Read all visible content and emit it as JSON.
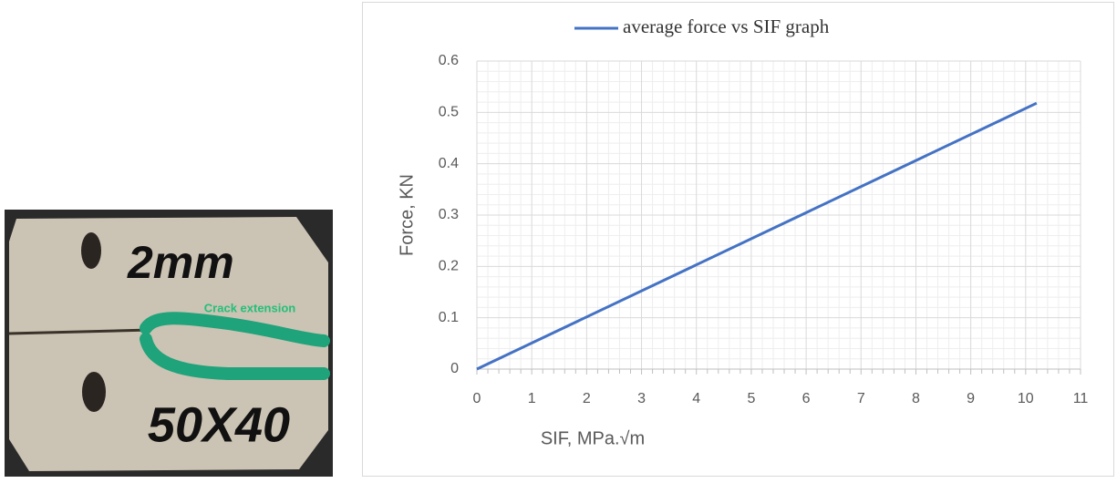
{
  "photo": {
    "labels": [
      "2mm",
      "Crack extension",
      "50X40"
    ]
  },
  "chart_data": {
    "type": "line",
    "legend_title": "average force vs SIF graph",
    "xlabel": "SIF, MPa.√m",
    "ylabel": "Force, KN",
    "x": [
      0,
      10.2
    ],
    "series": [
      {
        "name": "average force vs SIF graph",
        "color": "#4472c4",
        "values": [
          0,
          0.518
        ]
      }
    ],
    "xlim": [
      0,
      11
    ],
    "xticks": [
      0,
      1,
      2,
      3,
      4,
      5,
      6,
      7,
      8,
      9,
      10,
      11
    ],
    "ylim": [
      0,
      0.6
    ],
    "yticks": [
      0,
      0.1,
      0.2,
      0.3,
      0.4,
      0.5,
      0.6
    ],
    "grid": true,
    "minor_grid": true,
    "legend": "top"
  }
}
